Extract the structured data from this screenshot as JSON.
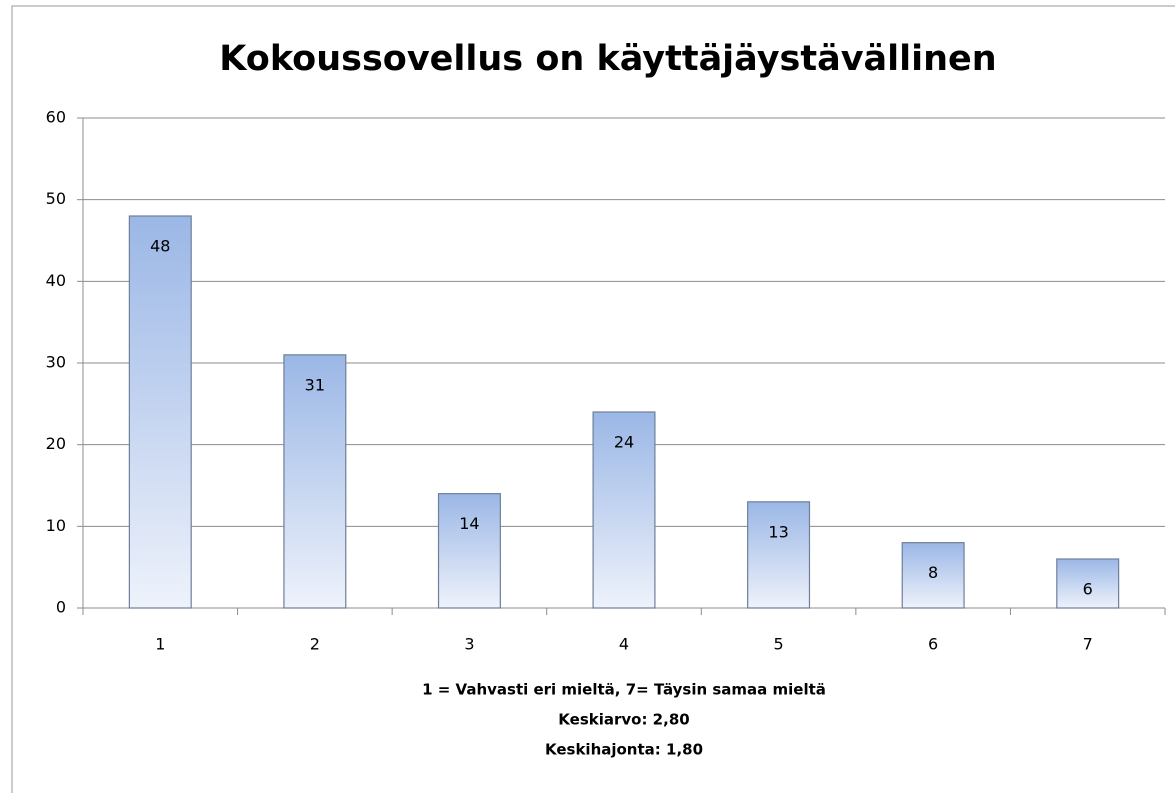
{
  "chart_data": {
    "type": "bar",
    "title": "Kokoussovellus on käyttäjäystävällinen",
    "categories": [
      "1",
      "2",
      "3",
      "4",
      "5",
      "6",
      "7"
    ],
    "values": [
      48,
      31,
      14,
      24,
      13,
      8,
      6
    ],
    "color": "#9bb7e6",
    "ylim": [
      0,
      60
    ],
    "yticks": [
      0,
      10,
      20,
      30,
      40,
      50,
      60
    ],
    "grid": true,
    "xlabel": "1 = Vahvasti eri mieltä, 7= Täysin samaa mieltä",
    "annotations": [
      "Keskiarvo: 2,80",
      "Keskihajonta: 1,80"
    ]
  }
}
